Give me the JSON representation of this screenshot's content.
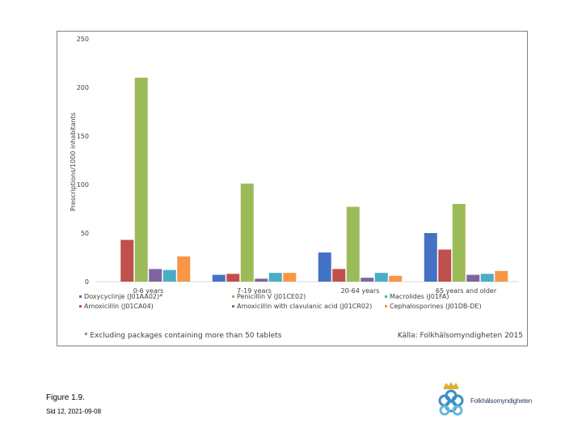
{
  "chart_data": {
    "type": "bar",
    "title": "",
    "ylabel": "Prescriptions/1000 inhabitants",
    "xlabel": "",
    "ylim": [
      0,
      250
    ],
    "yticks": [
      0,
      50,
      100,
      150,
      200,
      250
    ],
    "categories": [
      "0-6 years",
      "7-19 years",
      "20-64 years",
      "65 years and older"
    ],
    "series": [
      {
        "name": "Doxycyclinje (J01AA02)*",
        "color": "#4472c4",
        "values": [
          0,
          7,
          30,
          50
        ]
      },
      {
        "name": "Amoxicillin (J01CA04)",
        "color": "#c0504d",
        "values": [
          43,
          8,
          13,
          33
        ]
      },
      {
        "name": "Penicillin V (J01CE02)",
        "color": "#9bbb59",
        "values": [
          210,
          101,
          77,
          80
        ]
      },
      {
        "name": "Amoxicillin with clavulanic acid (J01CR02)",
        "color": "#8064a2",
        "values": [
          13,
          3,
          4,
          7
        ]
      },
      {
        "name": "Macrolides (J01FA)",
        "color": "#4bacc6",
        "values": [
          12,
          9,
          9,
          8
        ]
      },
      {
        "name": "Cephalosporines (J01DB-DE)",
        "color": "#f79646",
        "values": [
          26,
          9,
          6,
          11
        ]
      }
    ],
    "footnote": "* Excluding packages containing more than 50 tablets",
    "source": "Källa: Folkhälsomyndigheten 2015"
  },
  "figure_label": "Figure 1.9.",
  "slide_date": "Sld 12, 2021-09-08",
  "logo_text": "Folkhälsomyndigheten"
}
